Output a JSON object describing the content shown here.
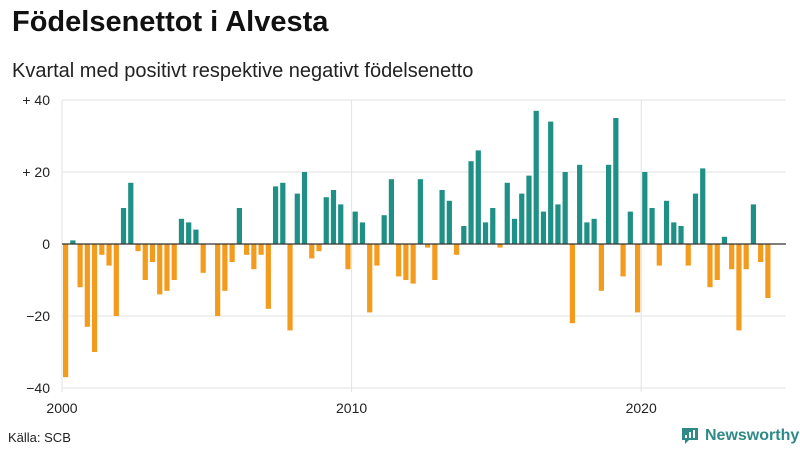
{
  "header": {
    "title": "Födelsenettot i Alvesta",
    "subtitle": "Kvartal med positivt respektive negativt födelsenetto"
  },
  "footer": {
    "source": "Källa: SCB",
    "brand": "Newsworthy"
  },
  "colors": {
    "positive": "#1f9086",
    "negative": "#f29b1d",
    "grid": "#e2e2e2",
    "baseline": "#333333",
    "brand": "#2e8a86"
  },
  "chart_data": {
    "type": "bar",
    "x_start": "2000-Q1",
    "x_end": "2024-Q4",
    "xlim": [
      2000,
      2025
    ],
    "ylim": [
      -40,
      40
    ],
    "y_ticks": [
      {
        "value": 40,
        "label": "+ 40"
      },
      {
        "value": 20,
        "label": "+ 20"
      },
      {
        "value": 0,
        "label": "0"
      },
      {
        "value": -20,
        "label": "−20"
      },
      {
        "value": -40,
        "label": "−40"
      }
    ],
    "x_ticks": [
      {
        "value": 2000,
        "label": "2000"
      },
      {
        "value": 2010,
        "label": "2010"
      },
      {
        "value": 2020,
        "label": "2020"
      }
    ],
    "grid": true,
    "values": [
      -37,
      1,
      -12,
      -23,
      -30,
      -3,
      -6,
      -20,
      10,
      17,
      -2,
      -10,
      -5,
      -14,
      -13,
      -10,
      7,
      6,
      4,
      -8,
      0,
      -20,
      -13,
      -5,
      10,
      -3,
      -7,
      -3,
      -18,
      16,
      17,
      -24,
      14,
      20,
      -4,
      -2,
      13,
      15,
      11,
      -7,
      9,
      6,
      -19,
      -6,
      8,
      18,
      -9,
      -10,
      -11,
      18,
      -1,
      -10,
      15,
      12,
      -3,
      5,
      23,
      26,
      6,
      10,
      -1,
      17,
      7,
      14,
      19,
      37,
      9,
      34,
      11,
      20,
      -22,
      22,
      6,
      7,
      -13,
      22,
      35,
      -9,
      9,
      -19,
      20,
      10,
      -6,
      12,
      6,
      5,
      -6,
      14,
      21,
      -12,
      -10,
      2,
      -7,
      -24,
      -7,
      11,
      -5,
      -15,
      0,
      0
    ]
  }
}
